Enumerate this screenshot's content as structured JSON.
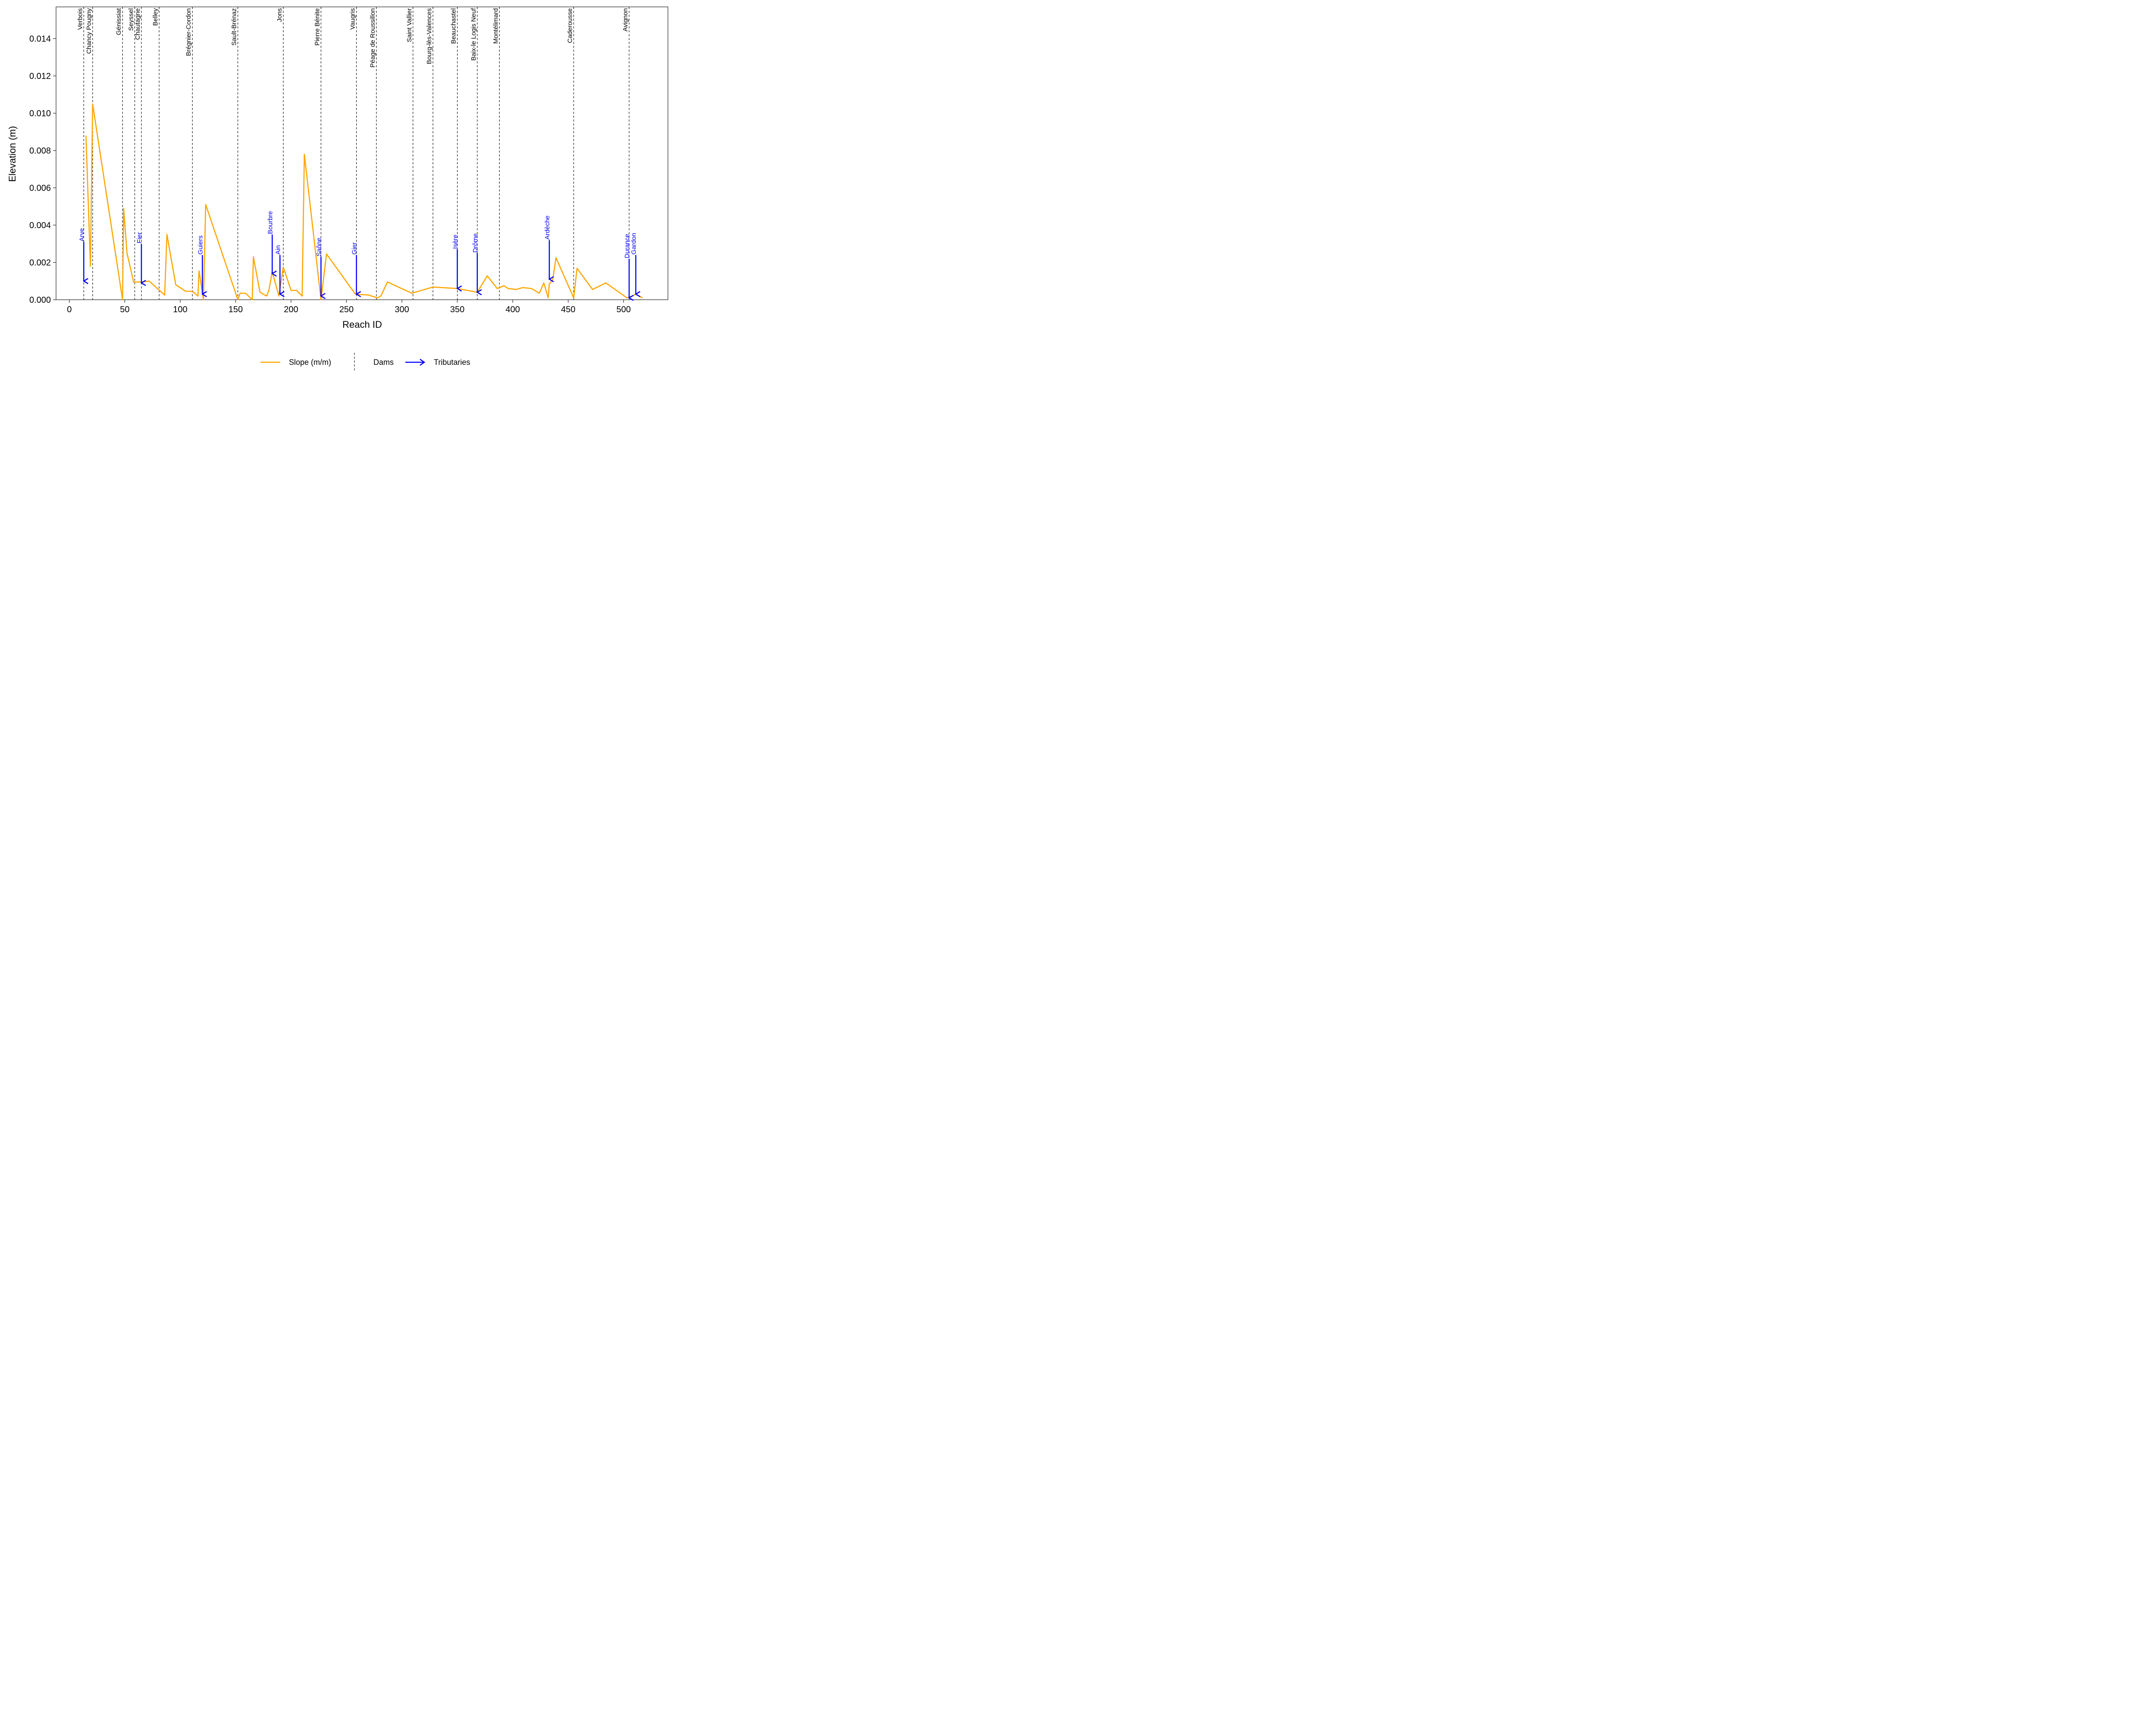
{
  "chart_data": {
    "type": "line",
    "xlabel": "Reach ID",
    "ylabel": "Elevation (m)",
    "xlim": [
      -12,
      540
    ],
    "ylim": [
      0,
      0.0157
    ],
    "x_ticks": [
      0,
      50,
      100,
      150,
      200,
      250,
      300,
      350,
      400,
      450,
      500
    ],
    "y_ticks": [
      0.0,
      0.002,
      0.004,
      0.006,
      0.008,
      0.01,
      0.012,
      0.014
    ],
    "y_tick_labels": [
      "0.000",
      "0.002",
      "0.004",
      "0.006",
      "0.008",
      "0.010",
      "0.012",
      "0.014"
    ],
    "grid": false,
    "colors": {
      "slope": "#FFA500",
      "dams": "#000000",
      "tributaries": "#0000FF"
    },
    "series": [
      {
        "name": "Slope (m/m)",
        "x": [
          15,
          19,
          21,
          48,
          49,
          52,
          58,
          62,
          65,
          72,
          86,
          88,
          96,
          105,
          111,
          116,
          117,
          121,
          123,
          152,
          154,
          159,
          165,
          166,
          172,
          178,
          180,
          183,
          189,
          193,
          200,
          205,
          210,
          212,
          227,
          232,
          258,
          270,
          278,
          281,
          287,
          309,
          328,
          350,
          368,
          377,
          386,
          392,
          396,
          403,
          409,
          417,
          424,
          428,
          432,
          433,
          436,
          439,
          455,
          458,
          472,
          484,
          503,
          508,
          511,
          517
        ],
        "y": [
          0.0088,
          0.0018,
          0.0105,
          0.0,
          0.0049,
          0.0025,
          0.00095,
          0.00095,
          0.00095,
          0.001,
          0.00025,
          0.0035,
          0.0008,
          0.00045,
          0.00045,
          0.0002,
          0.00155,
          0.0,
          0.0051,
          0.0,
          0.00035,
          0.00035,
          0.0,
          0.0023,
          0.0004,
          0.0002,
          0.0005,
          0.0015,
          0.0002,
          0.00175,
          0.0005,
          0.0005,
          0.0002,
          0.0078,
          0.0,
          0.00245,
          0.0003,
          0.00025,
          0.0001,
          0.0002,
          0.00095,
          0.00035,
          0.00068,
          0.0006,
          0.0004,
          0.00128,
          0.0006,
          0.00075,
          0.0006,
          0.00055,
          0.00065,
          0.0006,
          0.00035,
          0.0009,
          0.0001,
          0.00085,
          0.00105,
          0.00225,
          0.0001,
          0.00168,
          0.00055,
          0.0009,
          0.0001,
          0.0002,
          0.0003,
          0.0001
        ]
      }
    ],
    "dams": [
      {
        "name": "Verbois",
        "x": 13
      },
      {
        "name": "Chancy Pougny",
        "x": 21
      },
      {
        "name": "Génissiat",
        "x": 48
      },
      {
        "name": "Seyssel",
        "x": 59
      },
      {
        "name": "Chautagne",
        "x": 65
      },
      {
        "name": "Belley",
        "x": 81
      },
      {
        "name": "Brégnier-Cordon",
        "x": 111
      },
      {
        "name": "Sault-Brénaz",
        "x": 152
      },
      {
        "name": "Jons",
        "x": 193
      },
      {
        "name": "Pierre Bénite",
        "x": 227
      },
      {
        "name": "Vaugris",
        "x": 259
      },
      {
        "name": "Péage de Roussillon",
        "x": 277
      },
      {
        "name": "Saint Vallier",
        "x": 310
      },
      {
        "name": "Bourg-lès-Valences",
        "x": 328
      },
      {
        "name": "Beauchastel",
        "x": 350
      },
      {
        "name": "Baix-le Logis Neuf",
        "x": 368
      },
      {
        "name": "Montélimard",
        "x": 388
      },
      {
        "name": "Caderousse",
        "x": 455
      },
      {
        "name": "Avignon",
        "x": 505
      }
    ],
    "tributaries": [
      {
        "name": "Arve",
        "x": 13,
        "y_start": 0.0031,
        "y_end": 0.001
      },
      {
        "name": "Fier",
        "x": 65,
        "y_start": 0.003,
        "y_end": 0.0009
      },
      {
        "name": "Guiers",
        "x": 120,
        "y_start": 0.0024,
        "y_end": 0.0003
      },
      {
        "name": "Bourbre",
        "x": 183,
        "y_start": 0.0035,
        "y_end": 0.0014
      },
      {
        "name": "Ain",
        "x": 190,
        "y_start": 0.0024,
        "y_end": 0.0003
      },
      {
        "name": "Saône",
        "x": 227,
        "y_start": 0.0023,
        "y_end": 0.0002
      },
      {
        "name": "Gier",
        "x": 259,
        "y_start": 0.0024,
        "y_end": 0.0003
      },
      {
        "name": "Isère",
        "x": 350,
        "y_start": 0.0027,
        "y_end": 0.0006
      },
      {
        "name": "Drôme",
        "x": 368,
        "y_start": 0.0025,
        "y_end": 0.0004
      },
      {
        "name": "Ardèche",
        "x": 433,
        "y_start": 0.0032,
        "y_end": 0.0011
      },
      {
        "name": "Durance",
        "x": 505,
        "y_start": 0.0022,
        "y_end": 0.0001
      },
      {
        "name": "Gardon",
        "x": 511,
        "y_start": 0.0024,
        "y_end": 0.0003
      }
    ],
    "legend": {
      "placement": "bottom",
      "items": [
        {
          "label": "Slope (m/m)",
          "kind": "line"
        },
        {
          "label": "Dams",
          "kind": "dashed-vline"
        },
        {
          "label": "Tributaries",
          "kind": "arrow"
        }
      ]
    }
  }
}
